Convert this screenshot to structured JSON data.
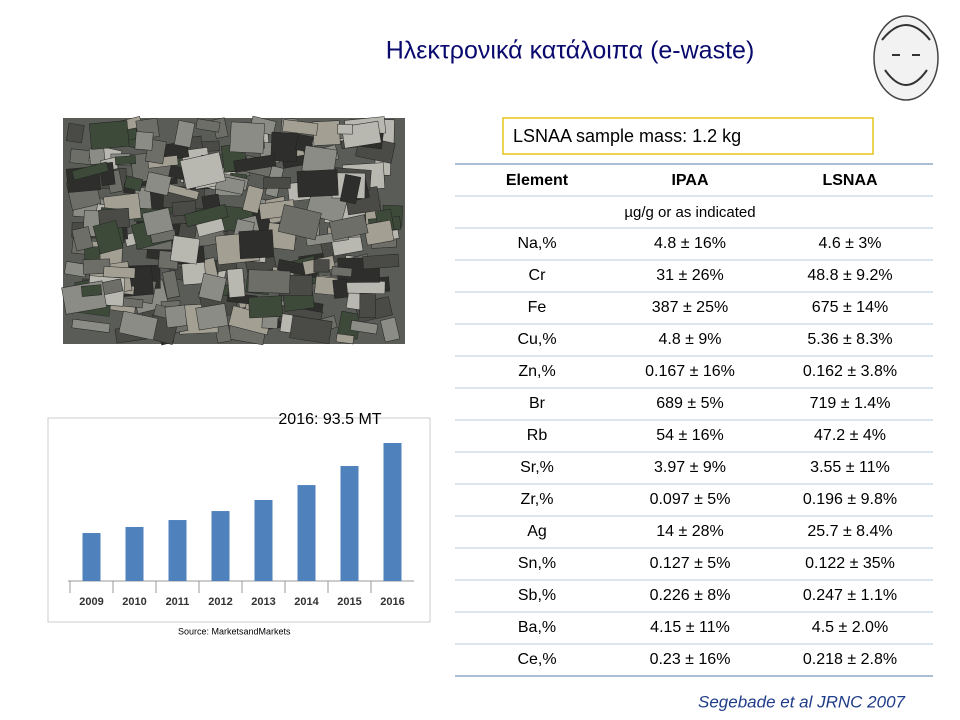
{
  "slide": {
    "title": "Ηλεκτρονικά κατάλοιπα (e-waste)",
    "sample_mass": "LSNAA sample mass: 1.2 kg",
    "citation": "Segebade et al JRNC 2007"
  },
  "chart_data": {
    "type": "bar",
    "categories": [
      "2009",
      "2010",
      "2011",
      "2012",
      "2013",
      "2014",
      "2015",
      "2016"
    ],
    "values": [
      32.5,
      36.6,
      41.3,
      47.4,
      54.9,
      65,
      77.9,
      93.5
    ],
    "color": "#4f81bd",
    "annotation": "2016: 93.5 MT",
    "source": "Source: MarketsandMarkets"
  },
  "table": {
    "header": [
      "Element",
      "IPAA",
      "LSNAA"
    ],
    "units": "µg/g or as indicated",
    "rows": [
      [
        "Na,%",
        "4.8 ± 16%",
        "4.6 ± 3%"
      ],
      [
        "Cr",
        "31 ± 26%",
        "48.8 ± 9.2%"
      ],
      [
        "Fe",
        "387 ± 25%",
        "675 ± 14%"
      ],
      [
        "Cu,%",
        "4.8 ± 9%",
        "5.36 ± 8.3%"
      ],
      [
        "Zn,%",
        "0.167 ± 16%",
        "0.162 ± 3.8%"
      ],
      [
        "Br",
        "689 ± 5%",
        "719 ± 1.4%"
      ],
      [
        "Rb",
        "54 ± 16%",
        "47.2 ± 4%"
      ],
      [
        "Sr,%",
        "3.97 ± 9%",
        "3.55 ± 11%"
      ],
      [
        "Zr,%",
        "0.097 ± 5%",
        "0.196 ± 9.8%"
      ],
      [
        "Ag",
        "14 ± 28%",
        "25.7 ± 8.4%"
      ],
      [
        "Sn,%",
        "0.127 ± 5%",
        "0.122 ± 35%"
      ],
      [
        "Sb,%",
        "0.226 ± 8%",
        "0.247 ± 1.1%"
      ],
      [
        "Ba,%",
        "4.15 ± 11%",
        "4.5 ± 2.0%"
      ],
      [
        "Ce,%",
        "0.23 ± 16%",
        "0.218 ± 2.8%"
      ]
    ]
  }
}
